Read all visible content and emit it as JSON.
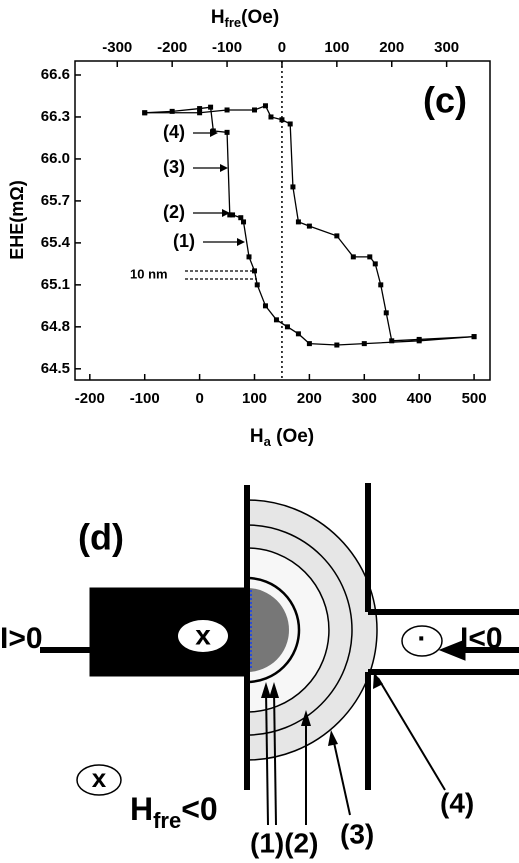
{
  "chart_data": {
    "type": "line",
    "xlabel": [
      "H",
      "a",
      " (Oe)"
    ],
    "x2label": [
      "H",
      "fre",
      "(Oe)"
    ],
    "ylabel": "EHE(mΩ)",
    "xlim": [
      -227,
      529
    ],
    "xticks": [
      -200,
      -100,
      0,
      100,
      200,
      300,
      400,
      500
    ],
    "x2lim": [
      -377,
      379
    ],
    "x2ticks": [
      -300,
      -200,
      -100,
      0,
      100,
      200,
      300
    ],
    "ylim": [
      64.42,
      66.7
    ],
    "yticks": [
      64.5,
      64.8,
      65.1,
      65.4,
      65.7,
      {
        "value": 66,
        "label": "66.0"
      },
      66.3,
      66.6
    ],
    "series": [
      {
        "color": "#000000",
        "x": [
          -100,
          -50,
          0,
          20,
          25,
          50,
          55,
          60,
          75,
          80,
          90,
          100,
          105,
          120,
          140,
          160,
          180,
          200,
          250,
          300,
          400,
          500
        ],
        "values": [
          66.33,
          66.34,
          66.36,
          66.37,
          66.2,
          66.19,
          65.6,
          65.6,
          65.58,
          65.55,
          65.3,
          65.2,
          65.1,
          64.95,
          64.85,
          64.8,
          64.75,
          64.68,
          64.67,
          64.68,
          64.7,
          64.73
        ]
      },
      {
        "color": "#000000",
        "x": [
          500,
          400,
          350,
          340,
          330,
          320,
          310,
          280,
          250,
          200,
          180,
          170,
          165,
          150,
          130,
          120,
          100,
          50,
          0,
          -100
        ],
        "values": [
          64.73,
          64.71,
          64.7,
          64.9,
          65.1,
          65.25,
          65.3,
          65.3,
          65.45,
          65.52,
          65.55,
          65.8,
          66.25,
          66.28,
          66.3,
          66.38,
          66.35,
          66.35,
          66.33,
          66.33
        ]
      }
    ],
    "annotations": [
      "(c)",
      "(4)",
      "(3)",
      "(2)",
      "(1)",
      "10 nm"
    ]
  },
  "diagram": {
    "panel_label": "(d)",
    "current_left": "I>0",
    "current_right": "I<0",
    "moment_in": "x",
    "moment_out": "·",
    "legend_moment": "x",
    "field": [
      "H",
      "fre",
      "<0"
    ],
    "region_labels": [
      "(1)(2)",
      "(3)",
      "(4)"
    ]
  }
}
